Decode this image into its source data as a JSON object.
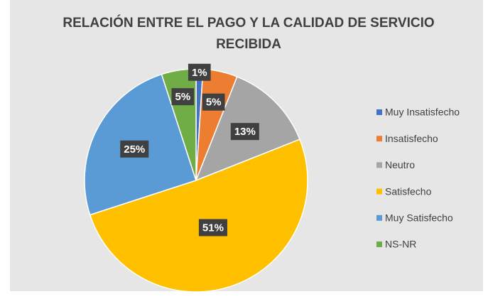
{
  "chart_data": {
    "type": "pie",
    "title": "RELACIÓN ENTRE EL PAGO Y LA CALIDAD DE SERVICIO RECIBIDA",
    "categories": [
      "Muy Insatisfecho",
      "Insatisfecho",
      "Neutro",
      "Satisfecho",
      "Muy Satisfecho",
      "NS-NR"
    ],
    "values": [
      1,
      5,
      13,
      51,
      25,
      5
    ],
    "value_labels": [
      "1%",
      "5%",
      "13%",
      "51%",
      "25%",
      "5%"
    ],
    "colors": [
      "#4472c4",
      "#ed7d31",
      "#a5a5a5",
      "#ffc000",
      "#5b9bd5",
      "#70ad47"
    ],
    "legend": "right"
  }
}
